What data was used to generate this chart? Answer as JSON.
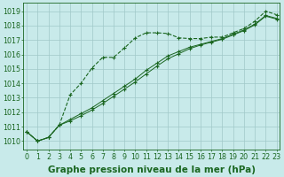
{
  "background_color": "#c8eaea",
  "grid_color": "#a0c8c8",
  "line_color": "#1a6620",
  "xlabel": "Graphe pression niveau de la mer (hPa)",
  "xlabel_fontsize": 7.5,
  "tick_fontsize": 5.8,
  "ytick_labels": [
    1010,
    1011,
    1012,
    1013,
    1014,
    1015,
    1016,
    1017,
    1018,
    1019
  ],
  "xtick_labels": [
    0,
    1,
    2,
    3,
    4,
    5,
    6,
    7,
    8,
    9,
    10,
    11,
    12,
    13,
    14,
    15,
    16,
    17,
    18,
    19,
    20,
    21,
    22,
    23
  ],
  "ylim": [
    1009.4,
    1019.6
  ],
  "xlim": [
    -0.3,
    23.3
  ],
  "series1": [
    1010.65,
    1010.0,
    1010.25,
    1011.1,
    1013.2,
    1014.0,
    1015.05,
    1015.8,
    1015.8,
    1016.45,
    1017.15,
    1017.5,
    1017.5,
    1017.45,
    1017.15,
    1017.1,
    1017.1,
    1017.2,
    1017.2,
    1017.5,
    1017.8,
    1018.3,
    1019.0,
    1018.75
  ],
  "series2": [
    1010.65,
    1010.0,
    1010.25,
    1011.1,
    1011.5,
    1011.9,
    1012.3,
    1012.8,
    1013.3,
    1013.8,
    1014.3,
    1014.9,
    1015.4,
    1015.9,
    1016.2,
    1016.5,
    1016.7,
    1016.9,
    1017.1,
    1017.4,
    1017.7,
    1018.1,
    1018.7,
    1018.5
  ],
  "series3": [
    1010.65,
    1010.0,
    1010.25,
    1011.1,
    1011.4,
    1011.75,
    1012.15,
    1012.6,
    1013.1,
    1013.6,
    1014.1,
    1014.65,
    1015.2,
    1015.7,
    1016.05,
    1016.4,
    1016.65,
    1016.85,
    1017.05,
    1017.35,
    1017.65,
    1018.05,
    1018.65,
    1018.45
  ],
  "marker": "+",
  "marker_size": 3.5,
  "linewidth": 0.8,
  "linewidth_thin": 0.7
}
